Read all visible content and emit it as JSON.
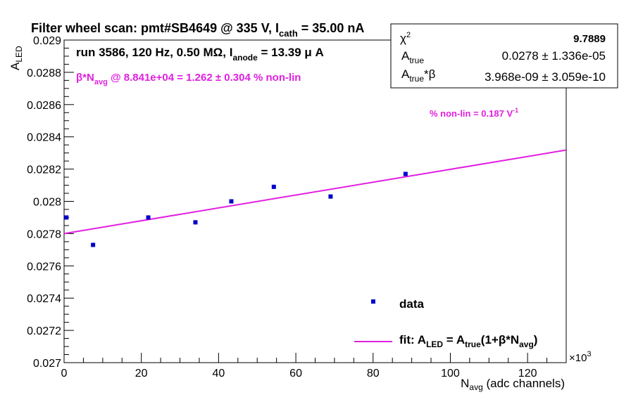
{
  "title": {
    "main": "Filter wheel scan: pmt#SB4649 @   335 V, I",
    "sub": "cath",
    "tail": " = 35.00 nA"
  },
  "run_info": {
    "main": "run 3586, 120 Hz, 0.50 MΩ, I",
    "sub": "anode",
    "tail": " = 13.39 μ A"
  },
  "beta_line": {
    "pre": "β*N",
    "sub": "avg",
    "tail": " @ 8.841e+04 = 1.262 ± 0.304 % non-lin"
  },
  "nonlin_note": {
    "main": "% non-lin = 0.187 V",
    "sup": "-1"
  },
  "stats": {
    "chi2_label": "χ",
    "chi2_sup": "2",
    "chi2_value": "9.7889",
    "atrue_label": "A",
    "atrue_sub": "true",
    "atrue_value": "0.0278 ± 1.336e-05",
    "atb_label": "A",
    "atb_sub": "true",
    "atb_tail": "*β",
    "atb_value": "3.968e-09 ± 3.059e-10"
  },
  "legend": {
    "data_label": "data",
    "fit_pre": "fit: A",
    "fit_sub1": "LED",
    "fit_mid": " = A",
    "fit_sub2": "true",
    "fit_mid2": "(1+β*N",
    "fit_sub3": "avg",
    "fit_tail": ")"
  },
  "colors": {
    "data": "#0000cc",
    "fit": "#e020e0",
    "text_magenta": "#e020e0",
    "axis": "#000000"
  },
  "chart_data": {
    "type": "scatter",
    "title": "Filter wheel scan: pmt#SB4649 @ 335 V, I_cath = 35.00 nA",
    "xlabel_main": "N",
    "xlabel_sub": "avg",
    "xlabel_tail": " (adc channels)",
    "ylabel_main": "A",
    "ylabel_sub": "LED",
    "x_multiplier": "×10",
    "x_multiplier_exp": "3",
    "xlim": [
      0,
      130
    ],
    "ylim": [
      0.027,
      0.029
    ],
    "x_ticks": [
      0,
      20,
      40,
      60,
      80,
      100,
      120
    ],
    "x_tick_labels": [
      "0",
      "20",
      "40",
      "60",
      "80",
      "100",
      "120"
    ],
    "y_ticks": [
      0.027,
      0.0272,
      0.0274,
      0.0276,
      0.0278,
      0.028,
      0.0282,
      0.0284,
      0.0286,
      0.0288,
      0.029
    ],
    "y_tick_labels": [
      "0.027",
      "0.0272",
      "0.0274",
      "0.0276",
      "0.0278",
      "0.028",
      "0.0282",
      "0.0284",
      "0.0286",
      "0.0288",
      "0.029"
    ],
    "grid": false,
    "series": [
      {
        "name": "data",
        "type": "scatter",
        "x": [
          0.6,
          7.5,
          21.8,
          34.0,
          43.3,
          54.3,
          69.0,
          88.4
        ],
        "y": [
          0.0279,
          0.02773,
          0.0279,
          0.02787,
          0.028,
          0.02809,
          0.02803,
          0.02817
        ],
        "yerr": [
          1.1e-05,
          1.1e-05,
          1.1e-05,
          1.3e-05,
          1.1e-05,
          1.3e-05,
          1.3e-05,
          1.3e-05
        ]
      },
      {
        "name": "fit",
        "type": "line",
        "x": [
          0,
          130
        ],
        "y": [
          0.0278,
          0.028318
        ]
      }
    ]
  }
}
